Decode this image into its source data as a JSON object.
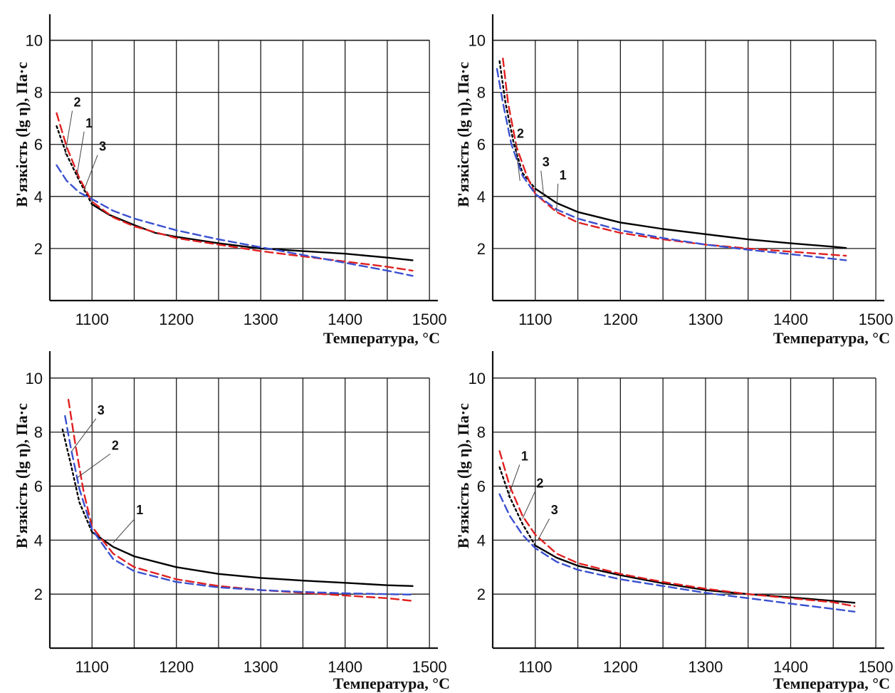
{
  "chart_data": [
    {
      "type": "line",
      "xlabel": "Температура, °С",
      "ylabel": "В'язкість (lg η), Па·с",
      "xlim": [
        1050,
        1510
      ],
      "ylim": [
        0,
        11
      ],
      "x_ticks": [
        "1100",
        "1200",
        "1300",
        "1400",
        "1500"
      ],
      "y_ticks": [
        "2",
        "4",
        "6",
        "8",
        "10"
      ],
      "grid": true,
      "series": [
        {
          "name": "1",
          "color": "#000000",
          "style": "solid",
          "x": [
            1100,
            1120,
            1150,
            1175,
            1200,
            1250,
            1300,
            1350,
            1400,
            1450,
            1480
          ],
          "y": [
            3.7,
            3.3,
            2.9,
            2.6,
            2.45,
            2.2,
            2.0,
            1.9,
            1.8,
            1.65,
            1.55
          ]
        },
        {
          "name": "1",
          "color": "#000000",
          "style": "dotted",
          "x": [
            1058,
            1070,
            1085,
            1100
          ],
          "y": [
            6.7,
            5.6,
            4.6,
            3.7
          ]
        },
        {
          "name": "2",
          "color": "#e02020",
          "style": "dashed",
          "x": [
            1058,
            1070,
            1085,
            1100,
            1125,
            1150,
            1200,
            1250,
            1300,
            1350,
            1400,
            1450,
            1480
          ],
          "y": [
            7.2,
            5.9,
            4.7,
            3.8,
            3.2,
            2.85,
            2.4,
            2.15,
            1.9,
            1.7,
            1.5,
            1.3,
            1.15
          ]
        },
        {
          "name": "3",
          "color": "#3a50d0",
          "style": "dashed",
          "x": [
            1058,
            1070,
            1085,
            1100,
            1125,
            1150,
            1200,
            1250,
            1300,
            1350,
            1400,
            1450,
            1480
          ],
          "y": [
            5.2,
            4.6,
            4.15,
            3.9,
            3.45,
            3.15,
            2.7,
            2.35,
            2.05,
            1.75,
            1.45,
            1.15,
            0.95
          ]
        }
      ],
      "labels": [
        {
          "text": "2",
          "x": 1080,
          "y": 7.4,
          "tx": 1068,
          "ty": 5.6
        },
        {
          "text": "1",
          "x": 1094,
          "y": 6.6,
          "tx": 1082,
          "ty": 4.8
        },
        {
          "text": "3",
          "x": 1110,
          "y": 5.7,
          "tx": 1090,
          "ty": 4.2
        }
      ]
    },
    {
      "type": "line",
      "xlabel": "Температура, °С",
      "ylabel": "В'язкість (lg η), Па·с",
      "xlim": [
        1050,
        1510
      ],
      "ylim": [
        0,
        11
      ],
      "x_ticks": [
        "1100",
        "1200",
        "1300",
        "1400",
        "1500"
      ],
      "y_ticks": [
        "2",
        "4",
        "6",
        "8",
        "10"
      ],
      "grid": true,
      "series": [
        {
          "name": "1",
          "color": "#000000",
          "style": "solid",
          "x": [
            1100,
            1125,
            1150,
            1200,
            1250,
            1300,
            1350,
            1400,
            1450,
            1465
          ],
          "y": [
            4.3,
            3.75,
            3.4,
            3.0,
            2.75,
            2.55,
            2.35,
            2.2,
            2.07,
            2.02
          ]
        },
        {
          "name": "1",
          "color": "#000000",
          "style": "dotted",
          "x": [
            1058,
            1065,
            1075,
            1085,
            1100
          ],
          "y": [
            9.2,
            7.6,
            6.0,
            4.9,
            4.3
          ]
        },
        {
          "name": "2",
          "color": "#e02020",
          "style": "dashed",
          "x": [
            1062,
            1068,
            1078,
            1090,
            1100,
            1125,
            1150,
            1200,
            1250,
            1300,
            1350,
            1400,
            1465
          ],
          "y": [
            9.3,
            7.6,
            5.9,
            4.8,
            4.1,
            3.4,
            3.0,
            2.6,
            2.35,
            2.15,
            2.0,
            1.88,
            1.72
          ]
        },
        {
          "name": "3",
          "color": "#3a50d0",
          "style": "dashed",
          "x": [
            1055,
            1062,
            1072,
            1085,
            1100,
            1125,
            1150,
            1200,
            1250,
            1300,
            1350,
            1400,
            1465
          ],
          "y": [
            8.9,
            7.6,
            6.0,
            4.8,
            4.1,
            3.5,
            3.15,
            2.7,
            2.4,
            2.15,
            1.95,
            1.78,
            1.55
          ]
        }
      ],
      "labels": [
        {
          "text": "2",
          "x": 1080,
          "y": 6.2,
          "tx": 1082,
          "ty": 4.6
        },
        {
          "text": "3",
          "x": 1110,
          "y": 5.1,
          "tx": 1110,
          "ty": 4.0
        },
        {
          "text": "1",
          "x": 1130,
          "y": 4.6,
          "tx": 1125,
          "ty": 3.4
        }
      ]
    },
    {
      "type": "line",
      "xlabel": "Температура, °С",
      "ylabel": "В'язкість (lg η), Па·с",
      "xlim": [
        1050,
        1510
      ],
      "ylim": [
        0,
        11
      ],
      "x_ticks": [
        "1100",
        "1200",
        "1300",
        "1400",
        "1500"
      ],
      "y_ticks": [
        "2",
        "4",
        "6",
        "8",
        "10"
      ],
      "grid": true,
      "series": [
        {
          "name": "1",
          "color": "#000000",
          "style": "solid",
          "x": [
            1100,
            1125,
            1150,
            1200,
            1250,
            1300,
            1350,
            1400,
            1450,
            1480
          ],
          "y": [
            4.3,
            3.75,
            3.4,
            3.0,
            2.75,
            2.6,
            2.5,
            2.42,
            2.33,
            2.3
          ]
        },
        {
          "name": "1",
          "color": "#000000",
          "style": "dotted",
          "x": [
            1065,
            1075,
            1085,
            1100
          ],
          "y": [
            8.1,
            6.8,
            5.4,
            4.3
          ]
        },
        {
          "name": "2",
          "color": "#e02020",
          "style": "dashed",
          "x": [
            1072,
            1080,
            1090,
            1100,
            1125,
            1150,
            1200,
            1250,
            1300,
            1350,
            1400,
            1450,
            1480
          ],
          "y": [
            9.2,
            7.6,
            5.8,
            4.5,
            3.5,
            3.0,
            2.55,
            2.3,
            2.15,
            2.05,
            1.95,
            1.85,
            1.75
          ]
        },
        {
          "name": "3",
          "color": "#3a50d0",
          "style": "dashed",
          "x": [
            1068,
            1075,
            1085,
            1100,
            1125,
            1150,
            1200,
            1250,
            1300,
            1350,
            1400,
            1450,
            1480
          ],
          "y": [
            8.6,
            7.4,
            5.9,
            4.4,
            3.3,
            2.85,
            2.45,
            2.25,
            2.15,
            2.08,
            2.03,
            2.0,
            1.98
          ]
        }
      ],
      "labels": [
        {
          "text": "3",
          "x": 1108,
          "y": 8.6,
          "tx": 1076,
          "ty": 7.3
        },
        {
          "text": "2",
          "x": 1125,
          "y": 7.3,
          "tx": 1082,
          "ty": 6.3
        },
        {
          "text": "1",
          "x": 1154,
          "y": 4.9,
          "tx": 1125,
          "ty": 3.9
        }
      ]
    },
    {
      "type": "line",
      "xlabel": "Температура, °С",
      "ylabel": "В'язкість (lg η), Па·с",
      "xlim": [
        1050,
        1510
      ],
      "ylim": [
        0,
        11
      ],
      "x_ticks": [
        "1100",
        "1200",
        "1300",
        "1400",
        "1500"
      ],
      "y_ticks": [
        "2",
        "4",
        "6",
        "8",
        "10"
      ],
      "grid": true,
      "series": [
        {
          "name": "1",
          "color": "#000000",
          "style": "solid",
          "x": [
            1100,
            1125,
            1150,
            1200,
            1250,
            1300,
            1350,
            1400,
            1450,
            1475
          ],
          "y": [
            3.8,
            3.35,
            3.05,
            2.7,
            2.4,
            2.15,
            2.0,
            1.88,
            1.75,
            1.68
          ]
        },
        {
          "name": "1",
          "color": "#000000",
          "style": "dotted",
          "x": [
            1058,
            1070,
            1085,
            1100
          ],
          "y": [
            6.7,
            5.6,
            4.6,
            3.8
          ]
        },
        {
          "name": "2",
          "color": "#e02020",
          "style": "dashed",
          "x": [
            1058,
            1070,
            1085,
            1100,
            1125,
            1150,
            1200,
            1250,
            1300,
            1350,
            1400,
            1450,
            1475
          ],
          "y": [
            7.3,
            6.0,
            4.9,
            4.2,
            3.5,
            3.15,
            2.75,
            2.45,
            2.2,
            2.0,
            1.85,
            1.7,
            1.55
          ]
        },
        {
          "name": "3",
          "color": "#3a50d0",
          "style": "dashed",
          "x": [
            1058,
            1070,
            1085,
            1100,
            1125,
            1150,
            1200,
            1250,
            1300,
            1350,
            1400,
            1450,
            1475
          ],
          "y": [
            5.7,
            4.9,
            4.2,
            3.7,
            3.2,
            2.9,
            2.55,
            2.3,
            2.05,
            1.85,
            1.65,
            1.45,
            1.35
          ]
        }
      ],
      "labels": [
        {
          "text": "1",
          "x": 1085,
          "y": 6.9,
          "tx": 1068,
          "ty": 5.6
        },
        {
          "text": "2",
          "x": 1103,
          "y": 5.9,
          "tx": 1085,
          "ty": 4.8
        },
        {
          "text": "3",
          "x": 1120,
          "y": 4.9,
          "tx": 1103,
          "ty": 4.0
        }
      ]
    }
  ]
}
